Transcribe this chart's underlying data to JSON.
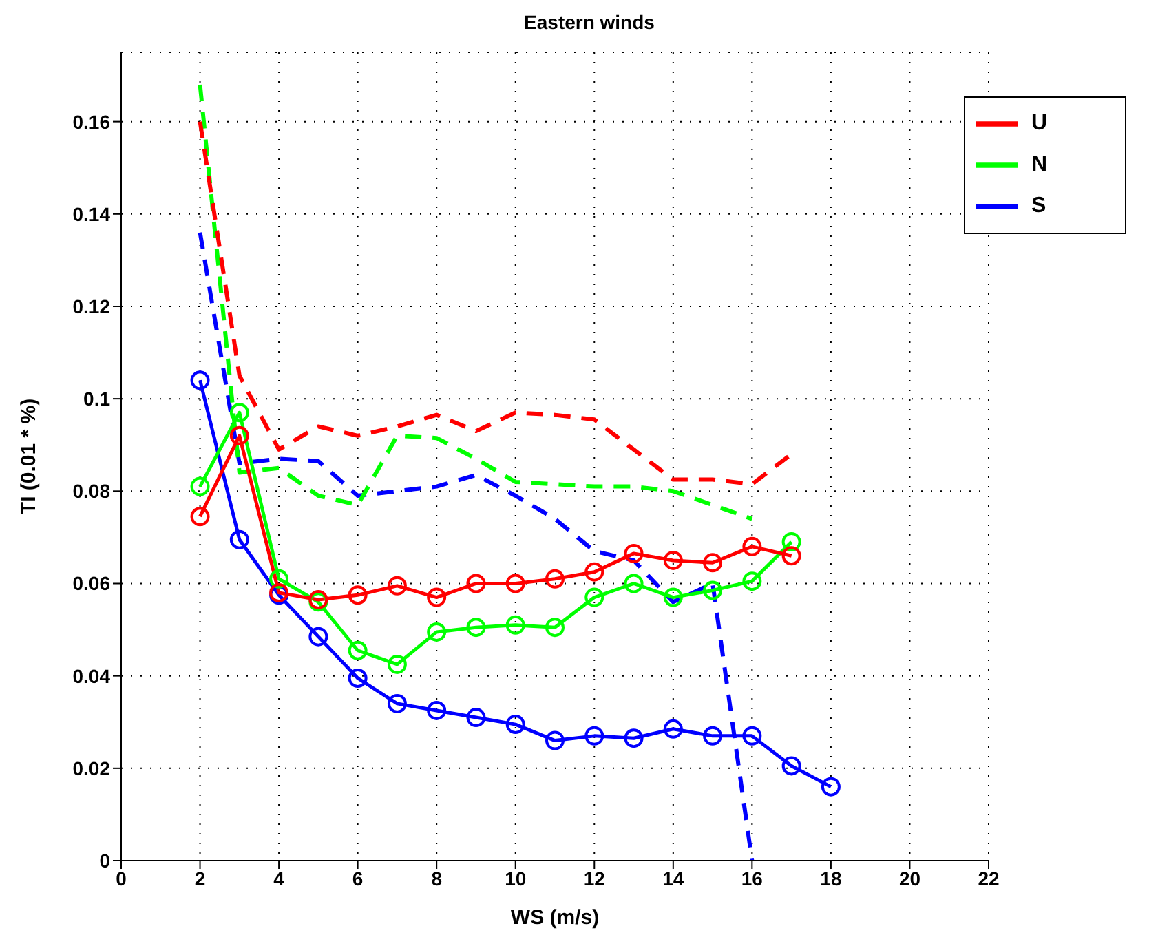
{
  "chart_data": {
    "type": "line",
    "title": "Eastern winds",
    "xlabel": "WS (m/s)",
    "ylabel": "TI (0.01 * %)",
    "xlim": [
      0,
      22
    ],
    "xticks": [
      0,
      2,
      4,
      6,
      8,
      10,
      12,
      14,
      16,
      18,
      20,
      22
    ],
    "ylim": [
      0,
      0.175
    ],
    "yticks": [
      0,
      0.02,
      0.04,
      0.06,
      0.08,
      0.1,
      0.12,
      0.14,
      0.16
    ],
    "grid": true,
    "legend": "top right",
    "marker": "circle",
    "line_style": "solid",
    "series": [
      {
        "name": "U",
        "color": "#ff0000",
        "x": [
          2,
          3,
          4,
          5,
          6,
          7,
          8,
          9,
          10,
          11,
          12,
          13,
          14,
          15,
          16,
          17
        ],
        "values": [
          0.0745,
          0.092,
          0.058,
          0.0565,
          0.0575,
          0.0595,
          0.057,
          0.06,
          0.06,
          0.061,
          0.0625,
          0.0665,
          0.065,
          0.0645,
          0.068,
          0.066
        ]
      },
      {
        "name": "N",
        "color": "#00ff00",
        "x": [
          2,
          3,
          4,
          5,
          6,
          7,
          8,
          9,
          10,
          11,
          12,
          13,
          14,
          15,
          16,
          17
        ],
        "values": [
          0.081,
          0.097,
          0.061,
          0.056,
          0.0455,
          0.0425,
          0.0495,
          0.0505,
          0.051,
          0.0505,
          0.057,
          0.06,
          0.057,
          0.0585,
          0.0605,
          0.069
        ]
      },
      {
        "name": "S",
        "color": "#0000ff",
        "x": [
          2,
          3,
          4,
          5,
          6,
          7,
          8,
          9,
          10,
          11,
          12,
          13,
          14,
          15,
          16,
          17,
          18
        ],
        "values": [
          0.104,
          0.0695,
          0.0575,
          0.0485,
          0.0395,
          0.034,
          0.0325,
          0.031,
          0.0295,
          0.026,
          0.027,
          0.0265,
          0.0285,
          0.027,
          0.027,
          0.0205,
          0.016
        ]
      },
      {
        "color": "#ff0000",
        "line_style": "dashed",
        "marker": "none",
        "x": [
          2,
          3,
          4,
          5,
          6,
          7,
          8,
          9,
          10,
          11,
          12,
          13,
          14,
          15,
          16,
          17
        ],
        "values": [
          0.16,
          0.105,
          0.089,
          0.094,
          0.092,
          0.094,
          0.0965,
          0.093,
          0.097,
          0.0965,
          0.0955,
          0.089,
          0.0825,
          0.0825,
          0.0815,
          0.088
        ]
      },
      {
        "color": "#00ff00",
        "line_style": "dashed",
        "marker": "none",
        "x": [
          2,
          3,
          4,
          5,
          6,
          7,
          8,
          9,
          10,
          11,
          12,
          13,
          14,
          15,
          16
        ],
        "values": [
          0.168,
          0.084,
          0.085,
          0.079,
          0.077,
          0.092,
          0.0915,
          0.087,
          0.082,
          0.0815,
          0.081,
          0.081,
          0.08,
          0.077,
          0.074
        ]
      },
      {
        "color": "#0000ff",
        "line_style": "dashed",
        "marker": "none",
        "x": [
          2,
          3,
          4,
          5,
          6,
          7,
          8,
          9,
          10,
          11,
          12,
          13,
          14,
          15,
          16
        ],
        "values": [
          0.136,
          0.086,
          0.087,
          0.0865,
          0.079,
          0.08,
          0.081,
          0.0835,
          0.079,
          0.074,
          0.067,
          0.065,
          0.056,
          0.06,
          0
        ]
      }
    ]
  }
}
